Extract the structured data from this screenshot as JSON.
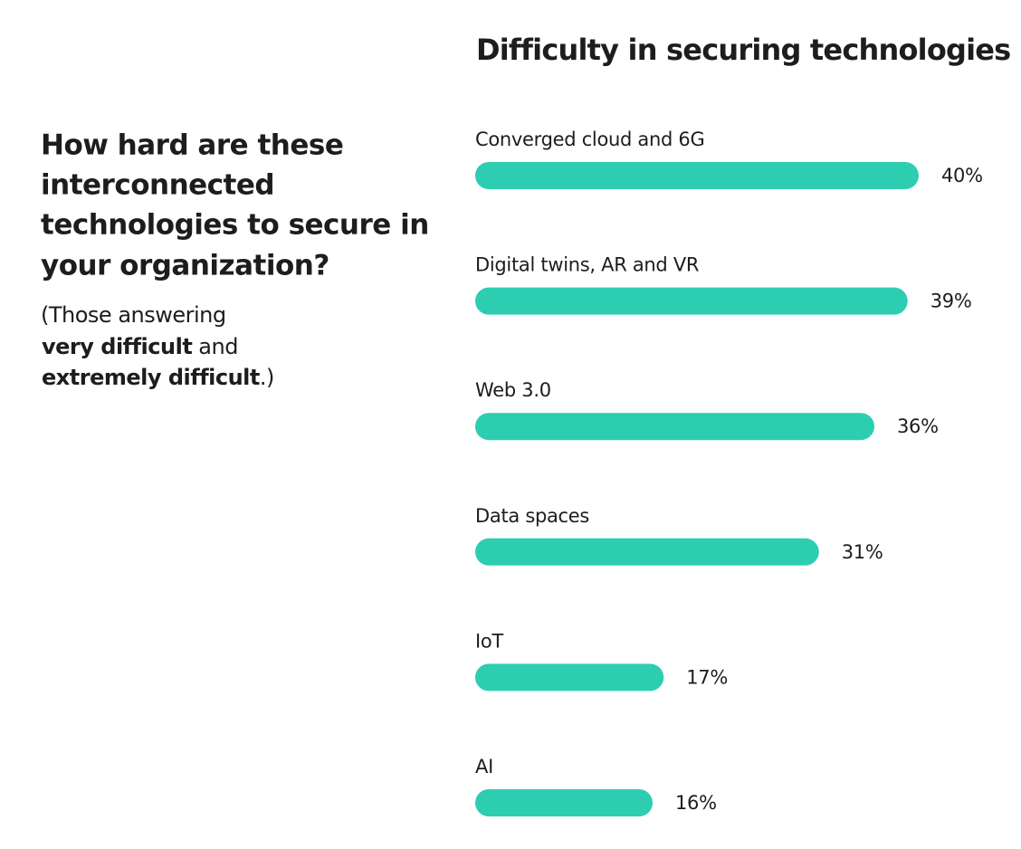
{
  "sidebar": {
    "heading": [
      "How hard are these",
      "interconnected",
      "technologies to secure in",
      "your organization?"
    ],
    "note": [
      "(Those answering",
      "very difficult",
      "and",
      "extremely difficult",
      ".)"
    ]
  },
  "chart_data": {
    "type": "bar",
    "orientation": "horizontal",
    "title": "Difficulty in securing technologies",
    "categories": [
      "Converged cloud and 6G",
      "Digital twins, AR and VR",
      "Web 3.0",
      "Data spaces",
      "IoT",
      "AI"
    ],
    "values": [
      40,
      39,
      36,
      31,
      17,
      16
    ],
    "value_labels": [
      "40%",
      "39%",
      "36%",
      "31%",
      "17%",
      "16%"
    ],
    "color": "#2dcdb2"
  }
}
